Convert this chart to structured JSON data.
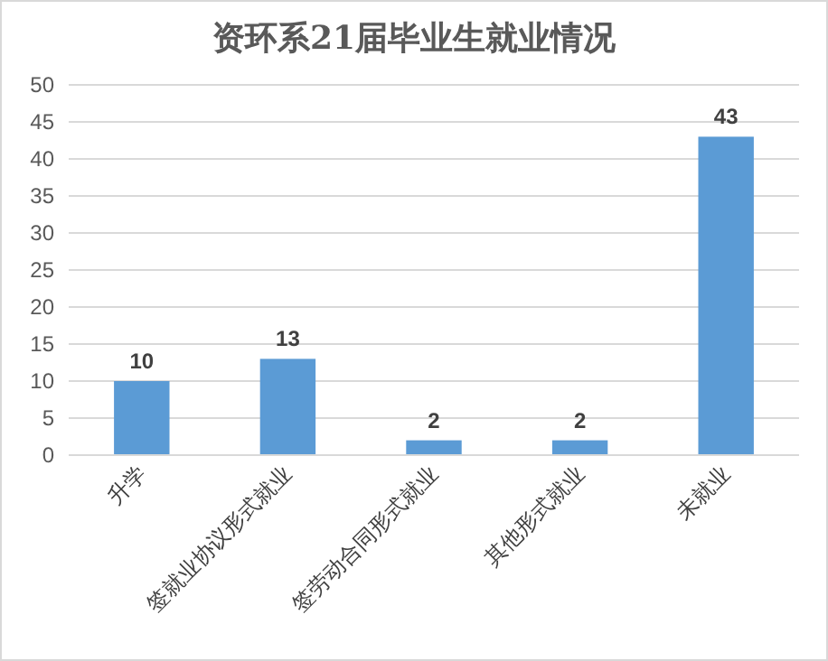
{
  "chart_data": {
    "type": "bar",
    "title": "资环系21届毕业生就业情况",
    "categories": [
      "升学",
      "签就业协议形式就业",
      "签劳动合同形式就业",
      "其他形式就业",
      "未就业"
    ],
    "values": [
      10,
      13,
      2,
      2,
      43
    ],
    "color": "#5b9bd5",
    "ylim": [
      0,
      50
    ],
    "yticks": [
      0,
      5,
      10,
      15,
      20,
      25,
      30,
      35,
      40,
      45,
      50
    ],
    "grid": "y",
    "data_labels": true
  }
}
